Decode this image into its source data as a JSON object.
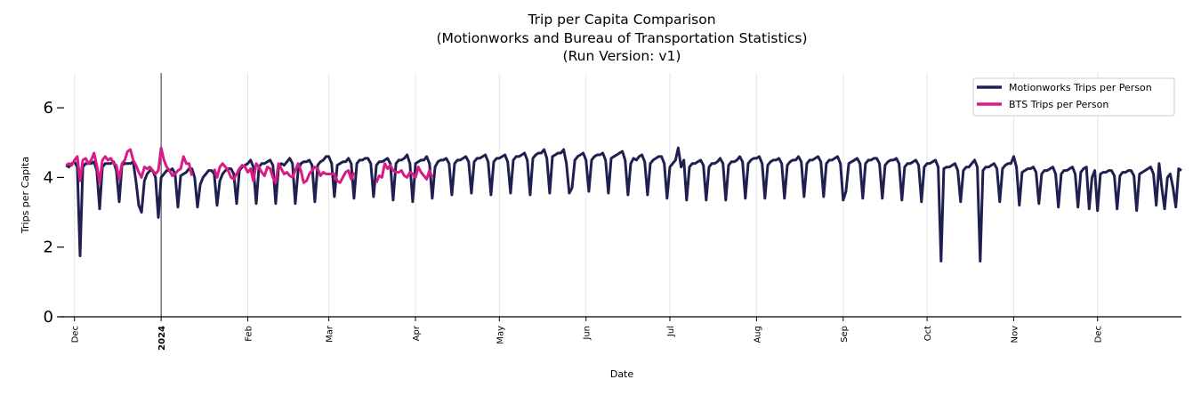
{
  "chart_data": {
    "type": "line",
    "title_lines": [
      "Trip per Capita Comparison",
      "(Motionworks and Bureau of Transportation Statistics)",
      "(Run Version: v1)"
    ],
    "xlabel": "Date",
    "ylabel": "Trips per Capita",
    "ylim": [
      0,
      7
    ],
    "xlim": [
      "2023-11-26",
      "2024-12-31"
    ],
    "yticks": [
      0,
      2,
      4,
      6
    ],
    "xticks": [
      {
        "date": "2023-12-01",
        "label": "Dec",
        "bold": false
      },
      {
        "date": "2024-01-01",
        "label": "2024",
        "bold": true
      },
      {
        "date": "2024-02-01",
        "label": "Feb",
        "bold": false
      },
      {
        "date": "2024-03-01",
        "label": "Mar",
        "bold": false
      },
      {
        "date": "2024-04-01",
        "label": "Apr",
        "bold": false
      },
      {
        "date": "2024-05-01",
        "label": "May",
        "bold": false
      },
      {
        "date": "2024-06-01",
        "label": "Jun",
        "bold": false
      },
      {
        "date": "2024-07-01",
        "label": "Jul",
        "bold": false
      },
      {
        "date": "2024-08-01",
        "label": "Aug",
        "bold": false
      },
      {
        "date": "2024-09-01",
        "label": "Sep",
        "bold": false
      },
      {
        "date": "2024-10-01",
        "label": "Oct",
        "bold": false
      },
      {
        "date": "2024-11-01",
        "label": "Nov",
        "bold": false
      },
      {
        "date": "2024-12-01",
        "label": "Dec",
        "bold": false
      }
    ],
    "grid": "vertical at month ticks",
    "vline_date": "2024-01-01",
    "legend_placement": "top-right",
    "series": [
      {
        "name": "Motionworks Trips per Person",
        "color": "#1f2050",
        "daily_by_month": {
          "2023-11": [
            null,
            null,
            null,
            null,
            null,
            null,
            null,
            null,
            null,
            null,
            null,
            null,
            null,
            null,
            null,
            null,
            null,
            null,
            null,
            null,
            null,
            null,
            null,
            null,
            null,
            null,
            null,
            4.35,
            4.3,
            4.4
          ],
          "2023-12": [
            4.45,
            4.3,
            1.75,
            4.3,
            4.4,
            4.4,
            4.4,
            4.45,
            4.2,
            3.1,
            4.3,
            4.4,
            4.4,
            4.4,
            4.45,
            4.2,
            3.3,
            4.35,
            4.4,
            4.4,
            4.4,
            4.45,
            3.9,
            3.2,
            3.0,
            3.9,
            4.1,
            4.2,
            4.2,
            4.0,
            2.85
          ],
          "2024-01": [
            4.0,
            4.1,
            4.2,
            4.2,
            4.25,
            4.1,
            3.15,
            4.05,
            4.1,
            4.15,
            4.25,
            4.25,
            4.0,
            3.15,
            3.8,
            4.0,
            4.1,
            4.2,
            4.2,
            4.1,
            3.2,
            3.9,
            4.1,
            4.2,
            4.25,
            4.25,
            4.1,
            3.25,
            4.2,
            4.3,
            4.35
          ],
          "2024-02": [
            4.4,
            4.5,
            4.3,
            3.25,
            4.3,
            4.4,
            4.4,
            4.45,
            4.5,
            4.35,
            3.25,
            4.3,
            4.4,
            4.35,
            4.45,
            4.55,
            4.4,
            3.25,
            4.2,
            4.4,
            4.45,
            4.45,
            4.5,
            4.35,
            3.3,
            4.35,
            4.45,
            4.5,
            4.6
          ],
          "2024-03": [
            4.6,
            4.4,
            3.45,
            4.35,
            4.4,
            4.45,
            4.45,
            4.55,
            4.4,
            3.4,
            4.4,
            4.5,
            4.5,
            4.55,
            4.55,
            4.4,
            3.45,
            4.35,
            4.45,
            4.45,
            4.5,
            4.55,
            4.4,
            3.35,
            4.4,
            4.5,
            4.5,
            4.55,
            4.65,
            4.4,
            3.3
          ],
          "2024-04": [
            4.4,
            4.45,
            4.5,
            4.5,
            4.6,
            4.4,
            3.4,
            4.3,
            4.45,
            4.5,
            4.5,
            4.55,
            4.4,
            3.5,
            4.4,
            4.5,
            4.5,
            4.55,
            4.6,
            4.45,
            3.55,
            4.45,
            4.55,
            4.55,
            4.6,
            4.65,
            4.45,
            3.5,
            4.45,
            4.55
          ],
          "2024-05": [
            4.55,
            4.6,
            4.65,
            4.45,
            3.55,
            4.5,
            4.6,
            4.6,
            4.65,
            4.7,
            4.5,
            3.5,
            4.55,
            4.65,
            4.7,
            4.7,
            4.8,
            4.55,
            3.55,
            4.6,
            4.65,
            4.7,
            4.7,
            4.8,
            4.4,
            3.55,
            3.7,
            4.5,
            4.6,
            4.65,
            4.7
          ],
          "2024-06": [
            4.5,
            3.6,
            4.5,
            4.6,
            4.65,
            4.65,
            4.7,
            4.5,
            3.55,
            4.55,
            4.6,
            4.65,
            4.7,
            4.75,
            4.5,
            3.5,
            4.4,
            4.55,
            4.5,
            4.6,
            4.65,
            4.45,
            3.5,
            4.4,
            4.5,
            4.55,
            4.6,
            4.6,
            4.4,
            3.4
          ],
          "2024-07": [
            4.3,
            4.4,
            4.5,
            4.85,
            4.3,
            4.5,
            3.35,
            4.3,
            4.4,
            4.4,
            4.45,
            4.5,
            4.35,
            3.35,
            4.3,
            4.4,
            4.4,
            4.45,
            4.55,
            4.4,
            3.35,
            4.35,
            4.45,
            4.45,
            4.5,
            4.6,
            4.45,
            3.4,
            4.4,
            4.5,
            4.55
          ],
          "2024-08": [
            4.55,
            4.6,
            4.4,
            3.4,
            4.35,
            4.45,
            4.5,
            4.5,
            4.55,
            4.4,
            3.4,
            4.35,
            4.45,
            4.5,
            4.5,
            4.6,
            4.45,
            3.45,
            4.4,
            4.5,
            4.5,
            4.55,
            4.6,
            4.45,
            3.45,
            4.4,
            4.5,
            4.5,
            4.55,
            4.6,
            4.4
          ],
          "2024-09": [
            3.35,
            3.6,
            4.4,
            4.45,
            4.5,
            4.55,
            4.4,
            3.4,
            4.4,
            4.5,
            4.5,
            4.55,
            4.55,
            4.4,
            3.4,
            4.35,
            4.45,
            4.5,
            4.5,
            4.55,
            4.4,
            3.35,
            4.3,
            4.4,
            4.4,
            4.45,
            4.5,
            4.35,
            3.3,
            4.3
          ],
          "2024-10": [
            4.4,
            4.4,
            4.45,
            4.5,
            4.3,
            1.6,
            4.25,
            4.3,
            4.3,
            4.35,
            4.4,
            4.2,
            3.3,
            4.2,
            4.3,
            4.3,
            4.4,
            4.5,
            4.3,
            1.6,
            4.2,
            4.3,
            4.3,
            4.35,
            4.4,
            4.25,
            3.3,
            4.25,
            4.35,
            4.4,
            4.4
          ],
          "2024-11": [
            4.6,
            4.3,
            3.2,
            4.15,
            4.2,
            4.25,
            4.25,
            4.3,
            4.15,
            3.25,
            4.1,
            4.2,
            4.2,
            4.25,
            4.3,
            4.1,
            3.15,
            4.1,
            4.2,
            4.2,
            4.25,
            4.3,
            4.1,
            3.15,
            4.15,
            4.25,
            4.3,
            3.1,
            4.0,
            4.2
          ],
          "2024-12": [
            3.05,
            4.1,
            4.15,
            4.15,
            4.2,
            4.2,
            4.05,
            3.1,
            4.05,
            4.15,
            4.15,
            4.2,
            4.2,
            4.05,
            3.05,
            4.1,
            4.15,
            4.2,
            4.25,
            4.3,
            4.1,
            3.2,
            4.4,
            3.7,
            3.1,
            4.0,
            4.1,
            3.7,
            3.15,
            4.25,
            4.2
          ]
        }
      },
      {
        "name": "BTS Trips per Person",
        "color": "#d81b85",
        "daily_by_month": {
          "2023-11": [
            null,
            null,
            null,
            null,
            null,
            null,
            null,
            null,
            null,
            null,
            null,
            null,
            null,
            null,
            null,
            null,
            null,
            null,
            null,
            null,
            null,
            null,
            null,
            null,
            null,
            null,
            null,
            4.35,
            4.4,
            4.35
          ],
          "2023-12": [
            4.5,
            4.6,
            3.9,
            4.5,
            4.55,
            4.4,
            4.5,
            4.7,
            4.35,
            3.85,
            4.5,
            4.6,
            4.5,
            4.55,
            4.4,
            4.35,
            3.95,
            4.4,
            4.5,
            4.75,
            4.8,
            4.5,
            4.35,
            4.15,
            4.0,
            4.3,
            4.25,
            4.3,
            4.2,
            4.1,
            4.2
          ],
          "2024-01": [
            4.85,
            4.5,
            4.3,
            4.2,
            4.05,
            4.1,
            4.2,
            4.25,
            4.6,
            4.4,
            4.4,
            4.05,
            null,
            null,
            null,
            null,
            null,
            null,
            null,
            4.25,
            4.0,
            4.3,
            4.4,
            4.3,
            4.2,
            4.0,
            3.95,
            4.1,
            4.25,
            4.35,
            4.3
          ],
          "2024-02": [
            4.15,
            4.25,
            3.9,
            4.4,
            4.3,
            4.15,
            4.05,
            4.3,
            4.25,
            4.0,
            3.85,
            4.4,
            4.25,
            4.1,
            4.15,
            4.05,
            4.0,
            4.2,
            4.4,
            4.2,
            3.85,
            3.9,
            4.1,
            4.2,
            4.3,
            4.25,
            4.05,
            4.15,
            4.1
          ],
          "2024-03": [
            4.1,
            4.1,
            4.1,
            3.9,
            3.85,
            4.0,
            4.15,
            4.2,
            3.95,
            4.15,
            null,
            null,
            null,
            null,
            null,
            null,
            null,
            3.85,
            4.05,
            4.0,
            4.4,
            4.25,
            4.35,
            4.2,
            4.15,
            4.15,
            4.2,
            4.05,
            4.0,
            4.15,
            4.1
          ],
          "2024-04": [
            4.0,
            4.3,
            4.15,
            4.05,
            3.95,
            4.2,
            4.0
          ]
        }
      }
    ]
  }
}
